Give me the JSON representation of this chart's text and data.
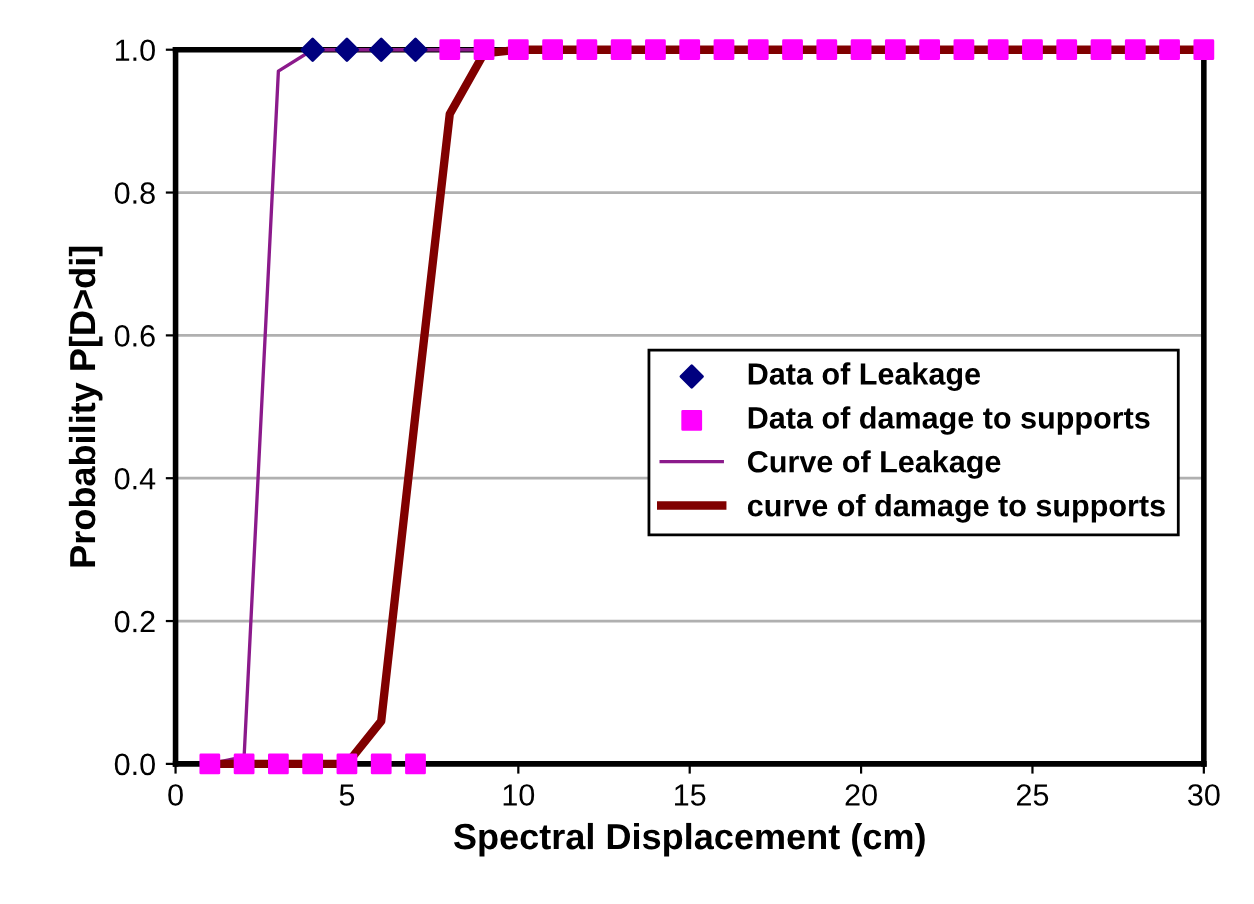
{
  "chart_data": {
    "type": "line",
    "xlabel": "Spectral Displacement (cm)",
    "ylabel": "Probability P[D>di]",
    "xlim": [
      0,
      30
    ],
    "ylim": [
      0,
      1
    ],
    "xticks": [
      0,
      5,
      10,
      15,
      20,
      25,
      30
    ],
    "yticks": [
      {
        "value": 0,
        "label": "0.0"
      },
      {
        "value": 0.2,
        "label": "0.2"
      },
      {
        "value": 0.4,
        "label": "0.4"
      },
      {
        "value": 0.6,
        "label": "0.6"
      },
      {
        "value": 0.8,
        "label": "0.8"
      },
      {
        "value": 1,
        "label": "1.0"
      }
    ],
    "grid": "y",
    "legend": "right",
    "series": [
      {
        "name": "Data of Leakage",
        "type": "scatter",
        "marker": "diamond",
        "color": "#00007f",
        "x": [
          4,
          5,
          6,
          7
        ],
        "values": [
          1,
          1,
          1,
          1
        ]
      },
      {
        "name": "Data of damage to supports",
        "type": "scatter",
        "marker": "square",
        "color": "#ff00ff",
        "x": [
          1,
          2,
          3,
          4,
          5,
          6,
          7,
          8,
          9,
          10,
          11,
          12,
          13,
          14,
          15,
          16,
          17,
          18,
          19,
          20,
          21,
          22,
          23,
          24,
          25,
          26,
          27,
          28,
          29,
          30
        ],
        "values": [
          0,
          0,
          0,
          0,
          0,
          0,
          0,
          1,
          1,
          1,
          1,
          1,
          1,
          1,
          1,
          1,
          1,
          1,
          1,
          1,
          1,
          1,
          1,
          1,
          1,
          1,
          1,
          1,
          1,
          1
        ]
      },
      {
        "name": "Curve of Leakage",
        "color": "#8b1a8b",
        "x": [
          1,
          2,
          3,
          4,
          30
        ],
        "values": [
          0,
          0.01,
          0.97,
          1,
          1
        ]
      },
      {
        "name": "curve of damage to supports",
        "color": "#800000",
        "x": [
          1,
          5,
          6,
          7,
          8,
          9,
          10,
          30
        ],
        "values": [
          0,
          0,
          0.06,
          0.49,
          0.91,
          0.995,
          1,
          1
        ]
      }
    ]
  }
}
